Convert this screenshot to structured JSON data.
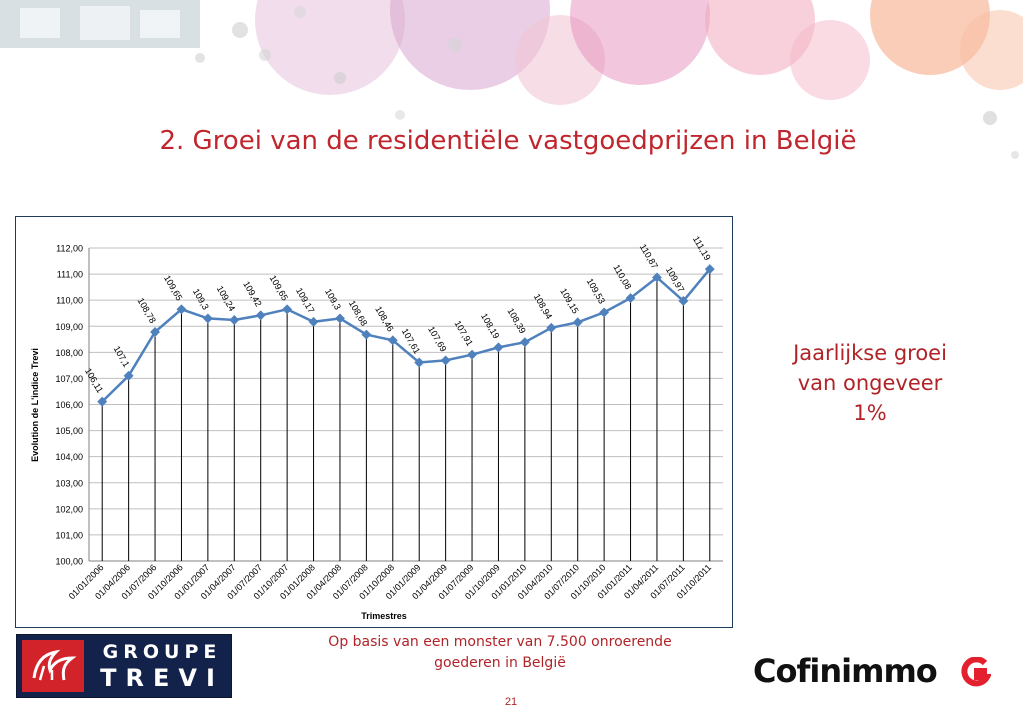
{
  "slide": {
    "title": "2. Groei van de residentiële vastgoedprijzen in België",
    "side_note": [
      "Jaarlijkse groei",
      "van ongeveer",
      "1%"
    ],
    "footnote": [
      "Op basis van een monster van 7.500 onroerende",
      "goederen in België"
    ],
    "page_number": "21"
  },
  "logos": {
    "trevi": {
      "line1": "GROUPE",
      "line2": "TREVI",
      "color": "#d3232a",
      "background": "#13224a"
    },
    "cofinimmo": {
      "text": "Cofinimmo",
      "mark_color": "#e4202e"
    }
  },
  "colors": {
    "title": "#c0262d",
    "series": "#4f81bd",
    "grid": "#bfbfbf"
  },
  "chart_data": {
    "type": "line",
    "xlabel": "Trimestres",
    "ylabel": "Evolution de L'indice Trevi",
    "ylim": [
      100,
      112
    ],
    "ytick_step": 1,
    "ytick_labels": [
      "100,00",
      "101,00",
      "102,00",
      "103,00",
      "104,00",
      "105,00",
      "106,00",
      "107,00",
      "108,00",
      "109,00",
      "110,00",
      "111,00",
      "112,00"
    ],
    "grid": "horizontal",
    "drop_lines": true,
    "categories": [
      "01/01/2006",
      "01/04/2006",
      "01/07/2006",
      "01/10/2006",
      "01/01/2007",
      "01/04/2007",
      "01/07/2007",
      "01/10/2007",
      "01/01/2008",
      "01/04/2008",
      "01/07/2008",
      "01/10/2008",
      "01/01/2009",
      "01/04/2009",
      "01/07/2009",
      "01/10/2009",
      "01/01/2010",
      "01/04/2010",
      "01/07/2010",
      "01/10/2010",
      "01/01/2011",
      "01/04/2011",
      "01/07/2011",
      "01/10/2011"
    ],
    "series": [
      {
        "values": [
          106.11,
          107.1,
          108.78,
          109.65,
          109.3,
          109.24,
          109.42,
          109.65,
          109.17,
          109.3,
          108.68,
          108.46,
          107.61,
          107.69,
          107.91,
          108.19,
          108.39,
          108.94,
          109.15,
          109.53,
          110.08,
          110.87,
          109.97,
          111.19
        ],
        "labels": [
          "106,11",
          "107,1",
          "108,78",
          "109,65",
          "109,3",
          "109,24",
          "109,42",
          "109,65",
          "109,17",
          "109,3",
          "108,68",
          "108,46",
          "107,61",
          "107,69",
          "107,91",
          "108,19",
          "108,39",
          "108,94",
          "109,15",
          "109,53",
          "110,08",
          "110,87",
          "109,97",
          "111,19"
        ]
      }
    ]
  }
}
